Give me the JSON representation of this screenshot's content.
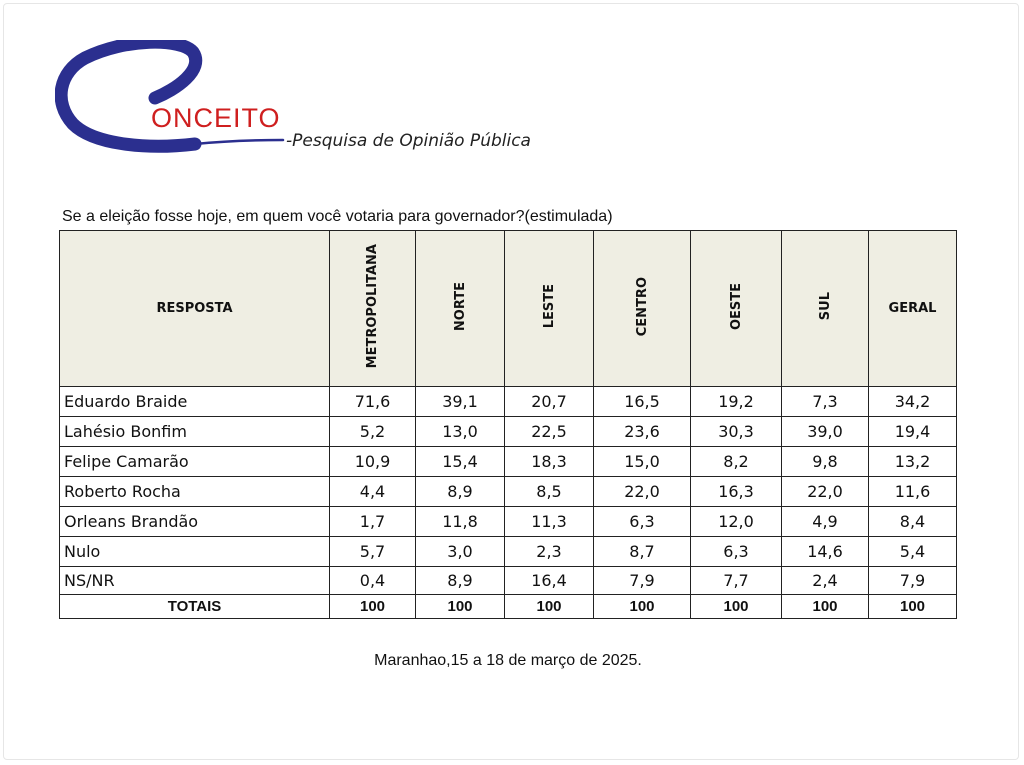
{
  "logo": {
    "text": "ONCEITO"
  },
  "subtitle": "-Pesquisa de Opinião Pública",
  "question": "Se a eleição fosse hoje, em quem você votaria para governador?(estimulada)",
  "table": {
    "columns": [
      "RESPOSTA",
      "METROPOLITANA",
      "NORTE",
      "LESTE",
      "CENTRO",
      "OESTE",
      "SUL",
      "GERAL"
    ],
    "rows": [
      [
        "Eduardo Braide",
        "71,6",
        "39,1",
        "20,7",
        "16,5",
        "19,2",
        "7,3",
        "34,2"
      ],
      [
        "Lahésio Bonfim",
        "5,2",
        "13,0",
        "22,5",
        "23,6",
        "30,3",
        "39,0",
        "19,4"
      ],
      [
        "Felipe Camarão",
        "10,9",
        "15,4",
        "18,3",
        "15,0",
        "8,2",
        "9,8",
        "13,2"
      ],
      [
        "Roberto Rocha",
        "4,4",
        "8,9",
        "8,5",
        "22,0",
        "16,3",
        "22,0",
        "11,6"
      ],
      [
        "Orleans Brandão",
        "1,7",
        "11,8",
        "11,3",
        "6,3",
        "12,0",
        "4,9",
        "8,4"
      ],
      [
        "Nulo",
        "5,7",
        "3,0",
        "2,3",
        "8,7",
        "6,3",
        "14,6",
        "5,4"
      ],
      [
        "NS/NR",
        "0,4",
        "8,9",
        "16,4",
        "7,9",
        "7,7",
        "2,4",
        "7,9"
      ],
      [
        "TOTAIS",
        "100",
        "100",
        "100",
        "100",
        "100",
        "100",
        "100"
      ]
    ]
  },
  "footer": "Maranhao,15 a 18 de março de 2025.",
  "colors": {
    "logo_ring": "#2b2f8f",
    "logo_text": "#cf1f1f",
    "header_bg": "#efeee3"
  }
}
